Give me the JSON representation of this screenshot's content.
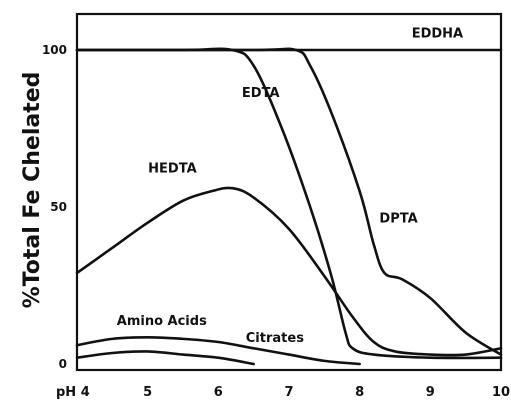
{
  "chart_data": {
    "type": "line",
    "title": "",
    "xlabel": "",
    "ylabel": "%Total Fe Chelated",
    "xlim": [
      4,
      10
    ],
    "ylim": [
      0,
      100
    ],
    "x_ticks": [
      4,
      5,
      6,
      7,
      8,
      9,
      10
    ],
    "x_tick_labels": [
      "pH 4",
      "5",
      "6",
      "7",
      "8",
      "9",
      "10"
    ],
    "y_ticks": [
      0,
      50,
      100
    ],
    "y_tick_labels": [
      "0",
      "50",
      "100"
    ],
    "grid": false,
    "series": [
      {
        "name": "EDDHA",
        "points": [
          [
            4,
            100
          ],
          [
            10,
            100
          ]
        ]
      },
      {
        "name": "EDTA",
        "points": [
          [
            4,
            100
          ],
          [
            5.5,
            100
          ],
          [
            6.2,
            100
          ],
          [
            6.5,
            95
          ],
          [
            6.9,
            75
          ],
          [
            7.3,
            50
          ],
          [
            7.6,
            28
          ],
          [
            7.8,
            10
          ],
          [
            7.9,
            5
          ],
          [
            8.2,
            3
          ],
          [
            9.0,
            2
          ],
          [
            10,
            2
          ]
        ]
      },
      {
        "name": "DPTA",
        "points": [
          [
            4,
            100
          ],
          [
            6.5,
            100
          ],
          [
            7.1,
            100
          ],
          [
            7.3,
            95
          ],
          [
            7.6,
            80
          ],
          [
            8.0,
            55
          ],
          [
            8.2,
            38
          ],
          [
            8.35,
            29
          ],
          [
            8.6,
            27
          ],
          [
            9.0,
            21
          ],
          [
            9.5,
            10
          ],
          [
            10,
            3
          ]
        ]
      },
      {
        "name": "HEDTA",
        "points": [
          [
            4,
            29
          ],
          [
            4.5,
            37
          ],
          [
            5,
            45
          ],
          [
            5.5,
            52
          ],
          [
            5.9,
            55
          ],
          [
            6.2,
            56
          ],
          [
            6.5,
            53
          ],
          [
            7.0,
            43
          ],
          [
            7.5,
            28
          ],
          [
            7.9,
            15
          ],
          [
            8.2,
            7
          ],
          [
            8.5,
            4
          ],
          [
            9.0,
            3
          ],
          [
            9.5,
            3
          ],
          [
            10,
            5
          ]
        ]
      },
      {
        "name": "Amino Acids",
        "points": [
          [
            4,
            6
          ],
          [
            4.5,
            8
          ],
          [
            5,
            8.5
          ],
          [
            5.5,
            8
          ],
          [
            6,
            7
          ],
          [
            6.5,
            5
          ],
          [
            7,
            3
          ],
          [
            7.5,
            1
          ],
          [
            8,
            0
          ]
        ]
      },
      {
        "name": "Citrates",
        "points": [
          [
            4,
            2
          ],
          [
            4.5,
            3.5
          ],
          [
            5,
            4
          ],
          [
            5.5,
            3
          ],
          [
            6,
            2
          ],
          [
            6.5,
            0
          ]
        ]
      }
    ]
  }
}
